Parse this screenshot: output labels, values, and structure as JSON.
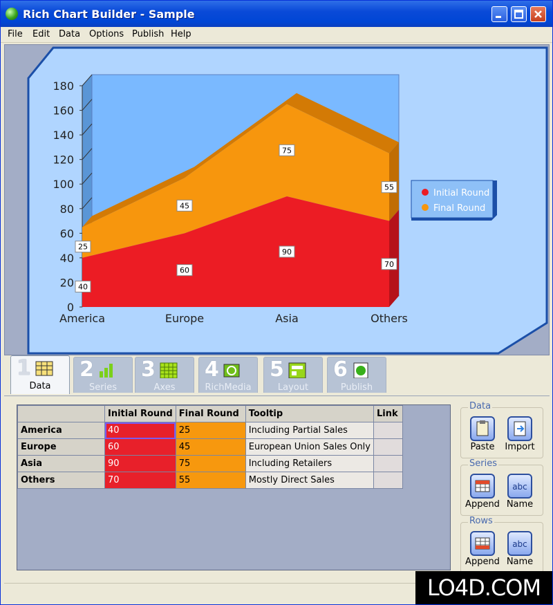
{
  "window": {
    "title": "Rich Chart Builder - Sample"
  },
  "menu": [
    "File",
    "Edit",
    "Data",
    "Options",
    "Publish",
    "Help"
  ],
  "tabs": [
    {
      "num": "1",
      "label": "Data"
    },
    {
      "num": "2",
      "label": "Series"
    },
    {
      "num": "3",
      "label": "Axes"
    },
    {
      "num": "4",
      "label": "RichMedia"
    },
    {
      "num": "5",
      "label": "Layout"
    },
    {
      "num": "6",
      "label": "Publish"
    }
  ],
  "grid": {
    "columns": [
      "",
      "Initial Round",
      "Final Round",
      "Tooltip",
      "Link"
    ],
    "rows": [
      {
        "name": "America",
        "initial": "40",
        "final": "25",
        "tooltip": "Including Partial Sales",
        "link": ""
      },
      {
        "name": "Europe",
        "initial": "60",
        "final": "45",
        "tooltip": "European Union Sales Only",
        "link": ""
      },
      {
        "name": "Asia",
        "initial": "90",
        "final": "75",
        "tooltip": "Including Retailers",
        "link": ""
      },
      {
        "name": "Others",
        "initial": "70",
        "final": "55",
        "tooltip": "Mostly Direct Sales",
        "link": ""
      }
    ]
  },
  "side": {
    "data": {
      "title": "Data",
      "b1": "Paste",
      "b2": "Import"
    },
    "series": {
      "title": "Series",
      "b1": "Append",
      "b2": "Name"
    },
    "rows": {
      "title": "Rows",
      "b1": "Append",
      "b2": "Name"
    }
  },
  "watermark": "LO4D.COM",
  "colors": {
    "initial": "#ec1c24",
    "final": "#f7960d",
    "plot_bg": "#7ab9ff",
    "panel_bg": "#b0d5ff"
  },
  "chart_data": {
    "type": "area",
    "stacked": true,
    "categories": [
      "America",
      "Europe",
      "Asia",
      "Others"
    ],
    "series": [
      {
        "name": "Initial Round",
        "values": [
          40,
          60,
          90,
          70
        ]
      },
      {
        "name": "Final Round",
        "values": [
          25,
          45,
          75,
          55
        ]
      }
    ],
    "ylim": [
      0,
      180
    ],
    "yticks": [
      0,
      20,
      40,
      60,
      80,
      100,
      120,
      140,
      160,
      180
    ],
    "legend": "right",
    "three_d": true
  }
}
